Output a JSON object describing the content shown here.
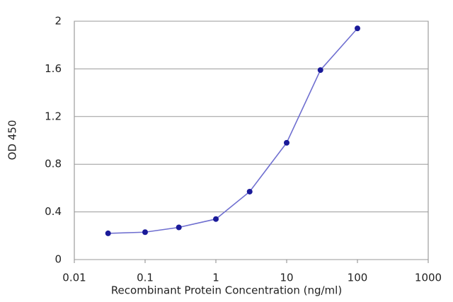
{
  "chart_data": {
    "type": "line",
    "xlabel": "Recombinant Protein Concentration (ng/ml)",
    "ylabel": "OD 450",
    "x": [
      0.03,
      0.1,
      0.3,
      1,
      3,
      10,
      30,
      100
    ],
    "values": [
      0.22,
      0.23,
      0.27,
      0.34,
      0.57,
      0.98,
      1.59,
      1.94
    ],
    "color": "#1a1a99",
    "line_color": "#6f6fd0",
    "xscale": "log",
    "xlim": [
      0.01,
      1000
    ],
    "xticks": [
      0.01,
      0.1,
      1,
      10,
      100,
      1000
    ],
    "ylim": [
      0,
      2
    ],
    "yticks": [
      0,
      0.4,
      0.8,
      1.2,
      1.6,
      2
    ],
    "grid": true
  }
}
